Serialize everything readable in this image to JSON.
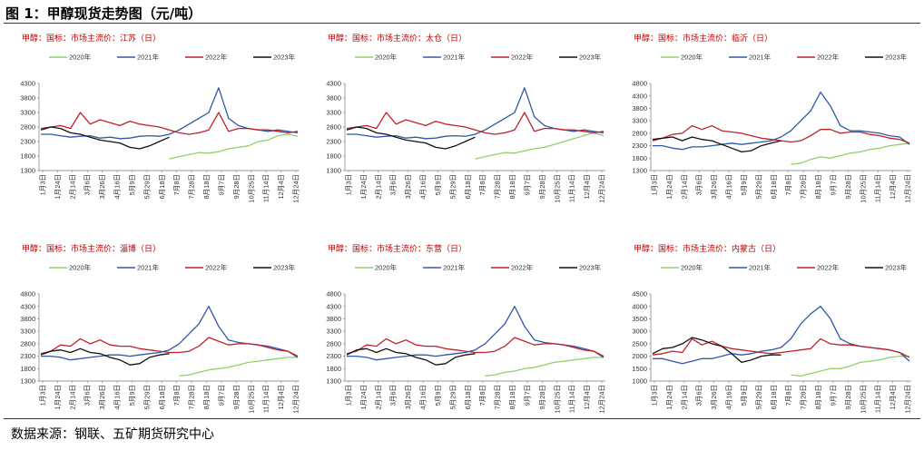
{
  "figure_title": "图 1：甲醇现货走势图（元/吨）",
  "source": "数据来源：钢联、五矿期货研究中心",
  "colors": {
    "2020年": "#8fd16a",
    "2021年": "#2e58a8",
    "2022年": "#c0202a",
    "2023年": "#111111",
    "title_red": "#c00000"
  },
  "x_ticks": [
    "1月3日",
    "1月24日",
    "2月14日",
    "3月6日",
    "3月26日",
    "4月16日",
    "5月9日",
    "5月29日",
    "6月18日",
    "7月8日",
    "7月28日",
    "8月18日",
    "9月7日",
    "9月28日",
    "10月25日",
    "11月14日",
    "12月4日",
    "12月24日"
  ],
  "chart_data": [
    {
      "type": "line",
      "title": "甲醇：国标：市场主流价：江苏（日）",
      "ylim": [
        1300,
        4300
      ],
      "yticks": [
        1300,
        1800,
        2300,
        2800,
        3300,
        3800,
        4300
      ],
      "ytick_labels": [
        "1300",
        "1800",
        "2300",
        "2800",
        "3300",
        "3800",
        "4300"
      ],
      "series": [
        {
          "name": "2020年",
          "values": [
            null,
            null,
            null,
            null,
            null,
            null,
            null,
            null,
            null,
            null,
            null,
            null,
            null,
            1700,
            1780,
            1850,
            1920,
            1900,
            1950,
            2050,
            2100,
            2150,
            2300,
            2350,
            2500,
            2550,
            2480
          ]
        },
        {
          "name": "2021年",
          "values": [
            2550,
            2550,
            2500,
            2450,
            2480,
            2500,
            2420,
            2450,
            2400,
            2420,
            2480,
            2500,
            2480,
            2550,
            2700,
            2900,
            3100,
            3300,
            4150,
            3100,
            2850,
            2750,
            2700,
            2650,
            2700,
            2650,
            2600
          ]
        },
        {
          "name": "2022年",
          "values": [
            2750,
            2800,
            2850,
            2750,
            3300,
            2900,
            3050,
            2950,
            2850,
            3000,
            2900,
            2850,
            2800,
            2700,
            2600,
            2550,
            2600,
            2700,
            3300,
            2650,
            2750,
            2750,
            2700,
            2700,
            2650,
            2600,
            2650
          ]
        },
        {
          "name": "2023年",
          "values": [
            2700,
            2800,
            2750,
            2600,
            2550,
            2450,
            2350,
            2300,
            2250,
            2100,
            2050,
            2150,
            2300,
            2450,
            null,
            null,
            null,
            null,
            null,
            null,
            null,
            null,
            null,
            null,
            null,
            null,
            null
          ]
        }
      ]
    },
    {
      "type": "line",
      "title": "甲醇：国标：市场主流价：太仓（日）",
      "ylim": [
        1300,
        4300
      ],
      "yticks": [
        1300,
        1800,
        2300,
        2800,
        3300,
        3800,
        4300
      ],
      "ytick_labels": [
        "1300",
        "1800",
        "2300",
        "2800",
        "3300",
        "3800",
        "4300"
      ],
      "series": [
        {
          "name": "2020年",
          "values": [
            null,
            null,
            null,
            null,
            null,
            null,
            null,
            null,
            null,
            null,
            null,
            null,
            null,
            1700,
            1780,
            1850,
            1920,
            1900,
            1980,
            2050,
            2100,
            2200,
            2300,
            2400,
            2500,
            2600,
            2500
          ]
        },
        {
          "name": "2021年",
          "values": [
            2550,
            2550,
            2500,
            2450,
            2480,
            2500,
            2420,
            2450,
            2400,
            2420,
            2480,
            2500,
            2480,
            2550,
            2700,
            2900,
            3100,
            3300,
            4150,
            3150,
            2850,
            2750,
            2700,
            2650,
            2700,
            2650,
            2600
          ]
        },
        {
          "name": "2022年",
          "values": [
            2750,
            2800,
            2850,
            2750,
            3300,
            2900,
            3050,
            2950,
            2850,
            3000,
            2900,
            2850,
            2800,
            2700,
            2600,
            2550,
            2600,
            2700,
            3300,
            2650,
            2750,
            2750,
            2700,
            2700,
            2650,
            2600,
            2650
          ]
        },
        {
          "name": "2023年",
          "values": [
            2700,
            2800,
            2750,
            2600,
            2550,
            2450,
            2350,
            2300,
            2250,
            2100,
            2050,
            2150,
            2300,
            2450,
            null,
            null,
            null,
            null,
            null,
            null,
            null,
            null,
            null,
            null,
            null,
            null,
            null
          ]
        }
      ]
    },
    {
      "type": "line",
      "title": "甲醇：国标：市场主流价：临沂（日）",
      "ylim": [
        1300,
        4800
      ],
      "yticks": [
        1300,
        1800,
        2300,
        2800,
        3300,
        3800,
        4300,
        4800
      ],
      "ytick_labels": [
        "1300",
        "1800",
        "2300",
        "2800",
        "3300",
        "3800",
        "4300",
        "4800"
      ],
      "series": [
        {
          "name": "2020年",
          "values": [
            null,
            null,
            null,
            null,
            null,
            null,
            null,
            null,
            null,
            null,
            null,
            null,
            null,
            null,
            1550,
            1600,
            1750,
            1850,
            1800,
            1900,
            2000,
            2050,
            2150,
            2200,
            2300,
            2350,
            2400
          ]
        },
        {
          "name": "2021年",
          "values": [
            2300,
            2300,
            2200,
            2150,
            2250,
            2250,
            2300,
            2350,
            2400,
            2350,
            2400,
            2450,
            2500,
            2650,
            2900,
            3300,
            3700,
            4450,
            3900,
            3100,
            2900,
            2900,
            2850,
            2800,
            2700,
            2650,
            2350
          ]
        },
        {
          "name": "2022年",
          "values": [
            2500,
            2600,
            2750,
            2800,
            3100,
            2950,
            3100,
            2900,
            2850,
            2800,
            2700,
            2600,
            2550,
            2500,
            2450,
            2500,
            2700,
            2950,
            2950,
            2800,
            2850,
            2850,
            2750,
            2700,
            2600,
            2550,
            2400
          ]
        },
        {
          "name": "2023年",
          "values": [
            2550,
            2600,
            2650,
            2500,
            2650,
            2550,
            2500,
            2350,
            2200,
            2050,
            2100,
            2300,
            2400,
            2500,
            null,
            null,
            null,
            null,
            null,
            null,
            null,
            null,
            null,
            null,
            null,
            null,
            null
          ]
        }
      ]
    },
    {
      "type": "line",
      "title": "甲醇：国标：市场主流价：淄博（日）",
      "ylim": [
        1300,
        4800
      ],
      "yticks": [
        1300,
        1800,
        2300,
        2800,
        3300,
        3800,
        4300,
        4800
      ],
      "ytick_labels": [
        "1300",
        "1800",
        "2300",
        "2800",
        "3300",
        "3800",
        "4300",
        "4800"
      ],
      "series": [
        {
          "name": "2020年",
          "values": [
            null,
            null,
            null,
            null,
            null,
            null,
            null,
            null,
            null,
            null,
            null,
            null,
            null,
            null,
            1500,
            1550,
            1650,
            1750,
            1800,
            1850,
            1950,
            2050,
            2100,
            2150,
            2200,
            2250,
            2250
          ]
        },
        {
          "name": "2021年",
          "values": [
            2300,
            2300,
            2250,
            2150,
            2200,
            2250,
            2300,
            2350,
            2350,
            2300,
            2350,
            2400,
            2450,
            2550,
            2800,
            3200,
            3600,
            4300,
            3500,
            2950,
            2850,
            2800,
            2750,
            2700,
            2600,
            2500,
            2250
          ]
        },
        {
          "name": "2022年",
          "values": [
            2400,
            2500,
            2750,
            2700,
            3000,
            2800,
            2950,
            2750,
            2700,
            2700,
            2600,
            2550,
            2500,
            2450,
            2450,
            2500,
            2700,
            3050,
            2900,
            2750,
            2800,
            2800,
            2750,
            2650,
            2550,
            2500,
            2300
          ]
        },
        {
          "name": "2023年",
          "values": [
            2350,
            2500,
            2550,
            2450,
            2600,
            2450,
            2400,
            2250,
            2150,
            1950,
            2000,
            2250,
            2350,
            2400,
            null,
            null,
            null,
            null,
            null,
            null,
            null,
            null,
            null,
            null,
            null,
            null,
            null
          ]
        }
      ]
    },
    {
      "type": "line",
      "title": "甲醇：国标：市场主流价：东营（日）",
      "ylim": [
        1300,
        4800
      ],
      "yticks": [
        1300,
        1800,
        2300,
        2800,
        3300,
        3800,
        4300,
        4800
      ],
      "ytick_labels": [
        "1300",
        "1800",
        "2300",
        "2800",
        "3300",
        "3800",
        "4300",
        "4800"
      ],
      "series": [
        {
          "name": "2020年",
          "values": [
            null,
            null,
            null,
            null,
            null,
            null,
            null,
            null,
            null,
            null,
            null,
            null,
            null,
            null,
            1500,
            1550,
            1650,
            1700,
            1800,
            1850,
            1950,
            2050,
            2100,
            2150,
            2200,
            2250,
            2250
          ]
        },
        {
          "name": "2021年",
          "values": [
            2300,
            2300,
            2250,
            2150,
            2200,
            2250,
            2300,
            2350,
            2350,
            2300,
            2350,
            2400,
            2450,
            2550,
            2800,
            3200,
            3600,
            4300,
            3500,
            2950,
            2850,
            2800,
            2750,
            2700,
            2600,
            2500,
            2250
          ]
        },
        {
          "name": "2022年",
          "values": [
            2400,
            2500,
            2750,
            2700,
            3000,
            2800,
            2950,
            2750,
            2700,
            2700,
            2600,
            2550,
            2500,
            2450,
            2450,
            2500,
            2700,
            3050,
            2900,
            2750,
            2800,
            2800,
            2750,
            2650,
            2550,
            2500,
            2300
          ]
        },
        {
          "name": "2023年",
          "values": [
            2350,
            2550,
            2600,
            2450,
            2600,
            2450,
            2400,
            2250,
            2150,
            1950,
            2000,
            2250,
            2350,
            2400,
            null,
            null,
            null,
            null,
            null,
            null,
            null,
            null,
            null,
            null,
            null,
            null,
            null
          ]
        }
      ]
    },
    {
      "type": "line",
      "title": "甲醇：国标：市场主流价：内蒙古（日）",
      "ylim": [
        1000,
        4500
      ],
      "yticks": [
        1000,
        1500,
        2000,
        2500,
        3000,
        3500,
        4000,
        4500
      ],
      "ytick_labels": [
        "1000",
        "1500",
        "2000",
        "2500",
        "3000",
        "3500",
        "4000",
        "4500"
      ],
      "series": [
        {
          "name": "2020年",
          "values": [
            null,
            null,
            null,
            null,
            null,
            null,
            null,
            null,
            null,
            null,
            null,
            null,
            null,
            null,
            1250,
            1200,
            1300,
            1400,
            1500,
            1500,
            1600,
            1750,
            1800,
            1850,
            1950,
            2000,
            2000
          ]
        },
        {
          "name": "2021年",
          "values": [
            1900,
            1900,
            1800,
            1700,
            1800,
            1900,
            1900,
            2000,
            2100,
            2050,
            2100,
            2200,
            2250,
            2350,
            2700,
            3300,
            3700,
            4000,
            3500,
            2700,
            2500,
            2400,
            2350,
            2300,
            2250,
            2150,
            1800
          ]
        },
        {
          "name": "2022年",
          "values": [
            2050,
            2100,
            2200,
            2150,
            2700,
            2450,
            2600,
            2400,
            2300,
            2250,
            2200,
            2150,
            2100,
            2150,
            2200,
            2250,
            2300,
            2700,
            2500,
            2450,
            2450,
            2400,
            2350,
            2300,
            2250,
            2150,
            1950
          ]
        },
        {
          "name": "2023年",
          "values": [
            2100,
            2300,
            2350,
            2500,
            2750,
            2650,
            2500,
            2400,
            2100,
            1750,
            1850,
            2000,
            2050,
            2050,
            null,
            null,
            null,
            null,
            null,
            null,
            null,
            null,
            null,
            null,
            null,
            null,
            null
          ]
        }
      ]
    }
  ]
}
